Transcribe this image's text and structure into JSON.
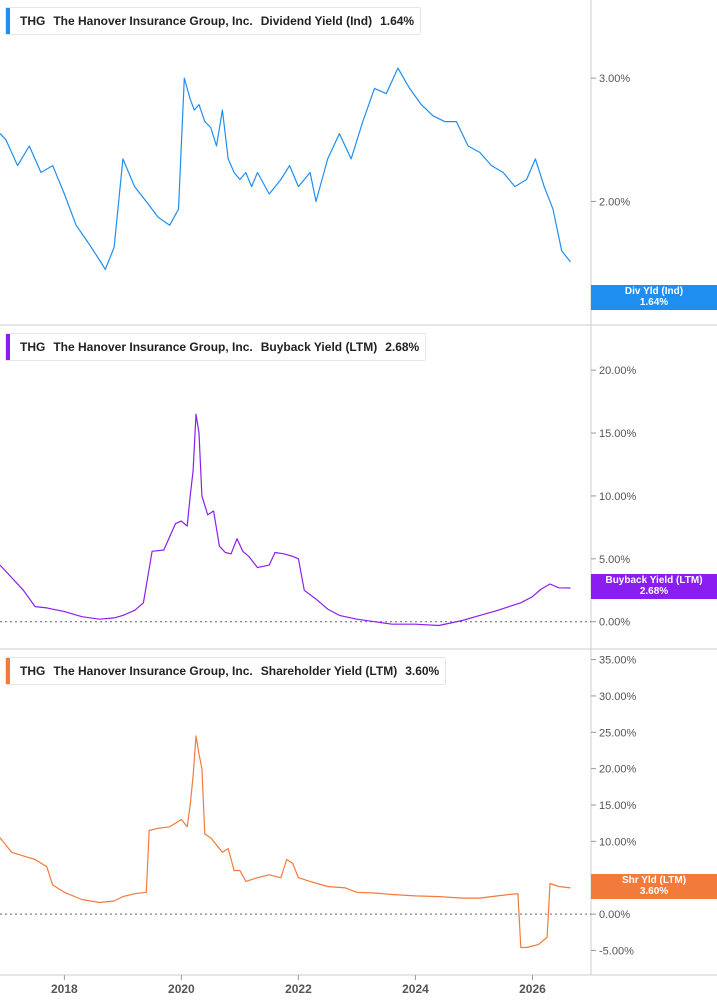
{
  "colors": {
    "dividend": "#1f8ef1",
    "buyback": "#8a1ef0",
    "shareholder": "#f27a3a",
    "axis_text": "#555555",
    "divider": "#cccccc"
  },
  "chart_data": [
    {
      "type": "line",
      "ticker": "THG",
      "company": "The Hanover Insurance Group, Inc.",
      "metric": "Dividend Yield (Ind)",
      "current_value": "1.64%",
      "tag_label": "Div Yld (Ind)",
      "tag_value": "1.64%",
      "yticks": [
        "3.00%",
        "2.00%"
      ],
      "ytick_values": [
        3.0,
        2.0
      ],
      "ylim": [
        1.4,
        3.4
      ],
      "log_scale": true,
      "zero_line": false,
      "x": [
        2016.9,
        2017.0,
        2017.2,
        2017.4,
        2017.6,
        2017.8,
        2018.0,
        2018.2,
        2018.4,
        2018.6,
        2018.7,
        2018.85,
        2019.0,
        2019.2,
        2019.4,
        2019.6,
        2019.8,
        2019.95,
        2020.05,
        2020.15,
        2020.22,
        2020.3,
        2020.4,
        2020.5,
        2020.6,
        2020.7,
        2020.8,
        2020.9,
        2021.0,
        2021.1,
        2021.2,
        2021.3,
        2021.5,
        2021.7,
        2021.85,
        2022.0,
        2022.2,
        2022.3,
        2022.5,
        2022.7,
        2022.9,
        2023.1,
        2023.3,
        2023.5,
        2023.7,
        2023.9,
        2024.1,
        2024.3,
        2024.5,
        2024.7,
        2024.9,
        2025.1,
        2025.3,
        2025.5,
        2025.7,
        2025.9,
        2026.05,
        2026.2,
        2026.35,
        2026.5,
        2026.65
      ],
      "y": [
        2.5,
        2.45,
        2.25,
        2.4,
        2.2,
        2.25,
        2.05,
        1.85,
        1.75,
        1.65,
        1.6,
        1.72,
        2.3,
        2.1,
        2.0,
        1.9,
        1.85,
        1.95,
        3.0,
        2.8,
        2.7,
        2.75,
        2.6,
        2.55,
        2.4,
        2.7,
        2.3,
        2.2,
        2.15,
        2.2,
        2.1,
        2.2,
        2.05,
        2.15,
        2.25,
        2.1,
        2.2,
        2.0,
        2.3,
        2.5,
        2.3,
        2.6,
        2.9,
        2.85,
        3.1,
        2.9,
        2.75,
        2.65,
        2.6,
        2.6,
        2.4,
        2.35,
        2.25,
        2.2,
        2.1,
        2.15,
        2.3,
        2.1,
        1.95,
        1.7,
        1.64
      ]
    },
    {
      "type": "line",
      "ticker": "THG",
      "company": "The Hanover Insurance Group, Inc.",
      "metric": "Buyback Yield (LTM)",
      "current_value": "2.68%",
      "tag_label": "Buyback Yield (LTM)",
      "tag_value": "2.68%",
      "yticks": [
        "20.00%",
        "15.00%",
        "10.00%",
        "5.00%",
        "0.00%"
      ],
      "ytick_values": [
        20,
        15,
        10,
        5,
        0
      ],
      "ylim": [
        -0.5,
        22
      ],
      "log_scale": false,
      "zero_line": true,
      "x": [
        2016.9,
        2017.0,
        2017.3,
        2017.5,
        2017.7,
        2018.0,
        2018.3,
        2018.6,
        2018.85,
        2019.0,
        2019.2,
        2019.35,
        2019.5,
        2019.7,
        2019.9,
        2020.0,
        2020.1,
        2020.15,
        2020.2,
        2020.25,
        2020.3,
        2020.35,
        2020.45,
        2020.55,
        2020.65,
        2020.75,
        2020.85,
        2020.95,
        2021.05,
        2021.15,
        2021.3,
        2021.5,
        2021.6,
        2021.75,
        2021.9,
        2022.0,
        2022.1,
        2022.3,
        2022.5,
        2022.7,
        2023.0,
        2023.3,
        2023.6,
        2024.0,
        2024.4,
        2024.8,
        2025.1,
        2025.4,
        2025.6,
        2025.8,
        2026.0,
        2026.15,
        2026.3,
        2026.45,
        2026.65
      ],
      "y": [
        4.5,
        4.0,
        2.5,
        1.2,
        1.1,
        0.8,
        0.4,
        0.2,
        0.3,
        0.5,
        0.9,
        1.5,
        5.6,
        5.7,
        7.8,
        8.0,
        7.6,
        10.0,
        12.0,
        16.5,
        15.0,
        10.0,
        8.5,
        8.8,
        6.0,
        5.5,
        5.4,
        6.6,
        5.6,
        5.2,
        4.3,
        4.5,
        5.5,
        5.4,
        5.2,
        5.0,
        2.5,
        1.8,
        1.0,
        0.5,
        0.2,
        0.0,
        -0.2,
        -0.2,
        -0.3,
        0.1,
        0.5,
        0.9,
        1.2,
        1.5,
        2.0,
        2.6,
        3.0,
        2.7,
        2.68
      ]
    },
    {
      "type": "line",
      "ticker": "THG",
      "company": "The Hanover Insurance Group, Inc.",
      "metric": "Shareholder Yield (LTM)",
      "current_value": "3.60%",
      "tag_label": "Shr Yld (LTM)",
      "tag_value": "3.60%",
      "yticks": [
        "35.00%",
        "30.00%",
        "25.00%",
        "20.00%",
        "15.00%",
        "10.00%",
        "5.00%",
        "0.00%",
        "-5.00%"
      ],
      "ytick_values": [
        35,
        30,
        25,
        20,
        15,
        10,
        5,
        0,
        -5
      ],
      "ylim": [
        -7,
        37
      ],
      "log_scale": false,
      "zero_line": true,
      "x": [
        2016.9,
        2017.1,
        2017.3,
        2017.5,
        2017.7,
        2017.8,
        2018.0,
        2018.3,
        2018.6,
        2018.85,
        2019.0,
        2019.2,
        2019.4,
        2019.45,
        2019.6,
        2019.8,
        2020.0,
        2020.1,
        2020.15,
        2020.2,
        2020.25,
        2020.3,
        2020.35,
        2020.4,
        2020.5,
        2020.6,
        2020.7,
        2020.8,
        2020.9,
        2021.0,
        2021.1,
        2021.3,
        2021.5,
        2021.7,
        2021.8,
        2021.9,
        2022.0,
        2022.2,
        2022.5,
        2022.8,
        2023.0,
        2023.3,
        2023.6,
        2024.0,
        2024.4,
        2024.8,
        2025.1,
        2025.4,
        2025.6,
        2025.75,
        2025.8,
        2025.9,
        2026.1,
        2026.25,
        2026.3,
        2026.45,
        2026.65
      ],
      "y": [
        10.5,
        8.5,
        8.0,
        7.5,
        6.5,
        4.0,
        3.0,
        2.0,
        1.6,
        1.8,
        2.4,
        2.8,
        3.0,
        11.5,
        11.8,
        12.0,
        13.0,
        12.0,
        15.0,
        19.0,
        24.5,
        22.0,
        20.0,
        11.0,
        10.5,
        9.5,
        8.5,
        9.0,
        6.0,
        6.0,
        4.5,
        5.0,
        5.4,
        5.0,
        7.5,
        7.0,
        5.0,
        4.5,
        3.8,
        3.6,
        3.0,
        2.9,
        2.7,
        2.5,
        2.4,
        2.2,
        2.2,
        2.5,
        2.7,
        2.8,
        -4.6,
        -4.6,
        -4.2,
        -3.2,
        4.2,
        3.8,
        3.6
      ]
    }
  ],
  "x_axis": {
    "tick_labels": [
      "2018",
      "2020",
      "2022",
      "2024",
      "2026"
    ],
    "tick_values": [
      2018,
      2020,
      2022,
      2024,
      2026
    ],
    "xlim": [
      2016.9,
      2027.0
    ]
  }
}
